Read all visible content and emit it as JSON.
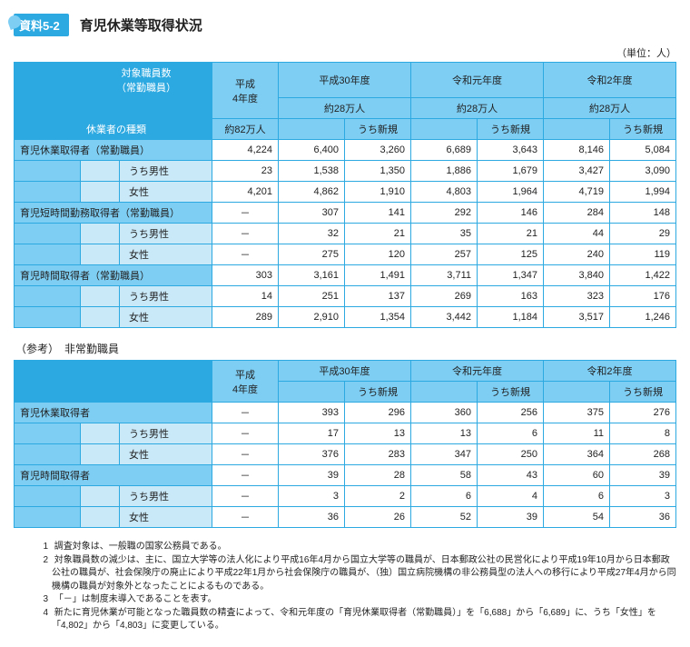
{
  "tag": "資料5-2",
  "title": "育児休業等取得状況",
  "unit": "（単位：人）",
  "table1": {
    "row_head1": "対象職員数\n（常勤職員）",
    "row_head2": "休業者の種類",
    "periods": [
      "平成\n4年度",
      "平成30年度",
      "令和元年度",
      "令和2年度"
    ],
    "counts": [
      "約82万人",
      "約28万人",
      "約28万人",
      "約28万人"
    ],
    "sub": "うち新規",
    "groups": [
      {
        "header": "育児休業取得者（常勤職員）",
        "subrows": [
          {
            "label": null,
            "cells": [
              "4,224",
              "6,400",
              "3,260",
              "6,689",
              "3,643",
              "8,146",
              "5,084"
            ]
          },
          {
            "label": "うち男性",
            "cells": [
              "23",
              "1,538",
              "1,350",
              "1,886",
              "1,679",
              "3,427",
              "3,090"
            ]
          },
          {
            "label": "女性",
            "cells": [
              "4,201",
              "4,862",
              "1,910",
              "4,803",
              "1,964",
              "4,719",
              "1,994"
            ]
          }
        ]
      },
      {
        "header": "育児短時間勤務取得者（常勤職員）",
        "subrows": [
          {
            "label": null,
            "cells": [
              "－",
              "307",
              "141",
              "292",
              "146",
              "284",
              "148"
            ]
          },
          {
            "label": "うち男性",
            "cells": [
              "－",
              "32",
              "21",
              "35",
              "21",
              "44",
              "29"
            ]
          },
          {
            "label": "女性",
            "cells": [
              "－",
              "275",
              "120",
              "257",
              "125",
              "240",
              "119"
            ]
          }
        ]
      },
      {
        "header": "育児時間取得者（常勤職員）",
        "subrows": [
          {
            "label": null,
            "cells": [
              "303",
              "3,161",
              "1,491",
              "3,711",
              "1,347",
              "3,840",
              "1,422"
            ]
          },
          {
            "label": "うち男性",
            "cells": [
              "14",
              "251",
              "137",
              "269",
              "163",
              "323",
              "176"
            ]
          },
          {
            "label": "女性",
            "cells": [
              "289",
              "2,910",
              "1,354",
              "3,442",
              "1,184",
              "3,517",
              "1,246"
            ]
          }
        ]
      }
    ]
  },
  "table2_title": "（参考）　非常勤職員",
  "table2": {
    "periods": [
      "平成\n4年度",
      "平成30年度",
      "令和元年度",
      "令和2年度"
    ],
    "sub": "うち新規",
    "groups": [
      {
        "header": "育児休業取得者",
        "subrows": [
          {
            "label": null,
            "cells": [
              "－",
              "393",
              "296",
              "360",
              "256",
              "375",
              "276"
            ]
          },
          {
            "label": "うち男性",
            "cells": [
              "－",
              "17",
              "13",
              "13",
              "6",
              "11",
              "8"
            ]
          },
          {
            "label": "女性",
            "cells": [
              "－",
              "376",
              "283",
              "347",
              "250",
              "364",
              "268"
            ]
          }
        ]
      },
      {
        "header": "育児時間取得者",
        "subrows": [
          {
            "label": null,
            "cells": [
              "－",
              "39",
              "28",
              "58",
              "43",
              "60",
              "39"
            ]
          },
          {
            "label": "うち男性",
            "cells": [
              "－",
              "3",
              "2",
              "6",
              "4",
              "6",
              "3"
            ]
          },
          {
            "label": "女性",
            "cells": [
              "－",
              "36",
              "26",
              "52",
              "39",
              "54",
              "36"
            ]
          }
        ]
      }
    ]
  },
  "notes_label": "（注）",
  "notes": [
    "調査対象は、一般職の国家公務員である。",
    "対象職員数の減少は、主に、国立大学等の法人化により平成16年4月から国立大学等の職員が、日本郵政公社の民営化により平成19年10月から日本郵政公社の職員が、社会保険庁の廃止により平成22年1月から社会保険庁の職員が、（独）国立病院機構の非公務員型の法人への移行により平成27年4月から同機構の職員が対象外となったことによるものである。",
    "「－」は制度未導入であることを表す。",
    "新たに育児休業が可能となった職員数の精査によって、令和元年度の「育児休業取得者（常勤職員）」を「6,688」から「6,689」に、うち「女性」を「4,802」から「4,803」に変更している。"
  ]
}
